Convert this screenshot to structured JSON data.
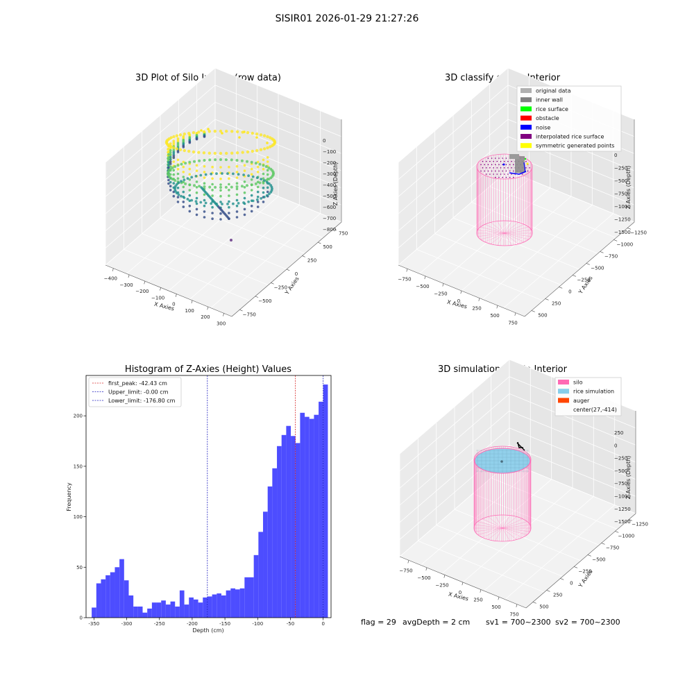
{
  "figure_title": "SISIR01 2026-01-29 21:27:26",
  "status_bar": {
    "flag": "flag = 29",
    "avg_depth": "avgDepth = 2 cm",
    "sv1": "sv1 = 700~2300",
    "sv2": "sv2 = 700~2300"
  },
  "colors": {
    "hist_bar": "#4d4dff",
    "first_peak_line": "#d62728",
    "limit_line": "#1f1fbf",
    "silo": "#ff69b4",
    "rice_simulation": "#87ceeb",
    "auger": "#ff4500"
  },
  "chart_data": [
    {
      "type": "scatter",
      "title": "3D Plot of Silo Interior(row data)",
      "xlabel": "X Axies",
      "ylabel": "Y Axies",
      "zlabel": "Z Axies (Depth)",
      "xticks": [
        "−400",
        "−300",
        "−200",
        "−100",
        "0",
        "100",
        "200",
        "300"
      ],
      "yticks": [
        "−750",
        "−500",
        "−250",
        "0",
        "250",
        "500",
        "750"
      ],
      "zticks": [
        "0",
        "−100",
        "−200",
        "−300",
        "−400",
        "−500",
        "−600",
        "−700",
        "−800"
      ],
      "xlim": [
        -420,
        300
      ],
      "ylim": [
        -800,
        800
      ],
      "zlim": [
        -850,
        50
      ],
      "colormap": "viridis"
    },
    {
      "type": "scatter",
      "title": "3D classify of Silo Interior",
      "zlabel": "Z Axies (Depth)",
      "xlabel": "X Axies",
      "ylabel": "Y Axies",
      "xticks": [
        "−750",
        "−500",
        "−250",
        "0",
        "250",
        "500",
        "750"
      ],
      "yticks": [
        "500",
        "250",
        "0",
        "−250",
        "−500",
        "−750",
        "−1000",
        "−1250"
      ],
      "zticks": [
        "0",
        "−250",
        "−500",
        "−750",
        "−1000",
        "−1250",
        "−1500"
      ],
      "legend_placement": "top-right",
      "legend": [
        {
          "label": "original data",
          "color": "#b0b0b0"
        },
        {
          "label": "inner wall",
          "color": "#808080"
        },
        {
          "label": "rice surface",
          "color": "#00ff00"
        },
        {
          "label": "obstacle",
          "color": "#ff0000"
        },
        {
          "label": "noise",
          "color": "#0000ff"
        },
        {
          "label": "interpolated rice surface",
          "color": "#800080"
        },
        {
          "label": "symmetric generated points",
          "color": "#ffff00"
        }
      ]
    },
    {
      "type": "bar",
      "title": "Histogram of Z-Axies (Height) Values",
      "xlabel": "Depth (cm)",
      "ylabel": "Frequency",
      "xlim": [
        -362,
        12
      ],
      "ylim": [
        0,
        240
      ],
      "xticks": [
        -350,
        -300,
        -250,
        -200,
        -150,
        -100,
        -50,
        0
      ],
      "yticks": [
        0,
        50,
        100,
        150,
        200
      ],
      "bin_start": -353.4,
      "bin_width": 7.07,
      "values": [
        10,
        34,
        38,
        42,
        45,
        50,
        58,
        37,
        22,
        11,
        11,
        5,
        9,
        15,
        15,
        17,
        13,
        16,
        11,
        27,
        13,
        20,
        18,
        15,
        20,
        21,
        23,
        24,
        22,
        27,
        29,
        28,
        29,
        40,
        40,
        62,
        85,
        105,
        130,
        148,
        170,
        181,
        190,
        180,
        173,
        203,
        199,
        197,
        201,
        214,
        231
      ],
      "vlines": [
        {
          "label": "first_peak: -42.43 cm",
          "x": -42.43,
          "color": "#d62728"
        },
        {
          "label": "Upper_limit: -0.00 cm",
          "x": 0,
          "color": "#1f1fbf"
        },
        {
          "label": "Lower_limit: -176.80 cm",
          "x": -176.8,
          "color": "#1f1fbf"
        }
      ],
      "grid": false,
      "legend_placement": "top-left"
    },
    {
      "type": "scatter",
      "title": "3D simulation of Silo Interior",
      "zlabel": "Z Axies (Depth)",
      "xlabel": "X Axies",
      "ylabel": "Y Axies",
      "xticks": [
        "−750",
        "−500",
        "−250",
        "0",
        "250",
        "500",
        "750"
      ],
      "yticks": [
        "500",
        "250",
        "0",
        "−250",
        "−500",
        "−750",
        "−1000",
        "−1250"
      ],
      "zticks": [
        "250",
        "0",
        "−250",
        "−500",
        "−750",
        "−1000",
        "−1250",
        "−1500"
      ],
      "legend_placement": "top-right",
      "legend": [
        {
          "label": "silo",
          "color": "#ff69b4"
        },
        {
          "label": "rice simulation",
          "color": "#87ceeb"
        },
        {
          "label": "auger",
          "color": "#ff4500"
        },
        {
          "label": "center(27,-414)",
          "color": ""
        }
      ]
    }
  ]
}
